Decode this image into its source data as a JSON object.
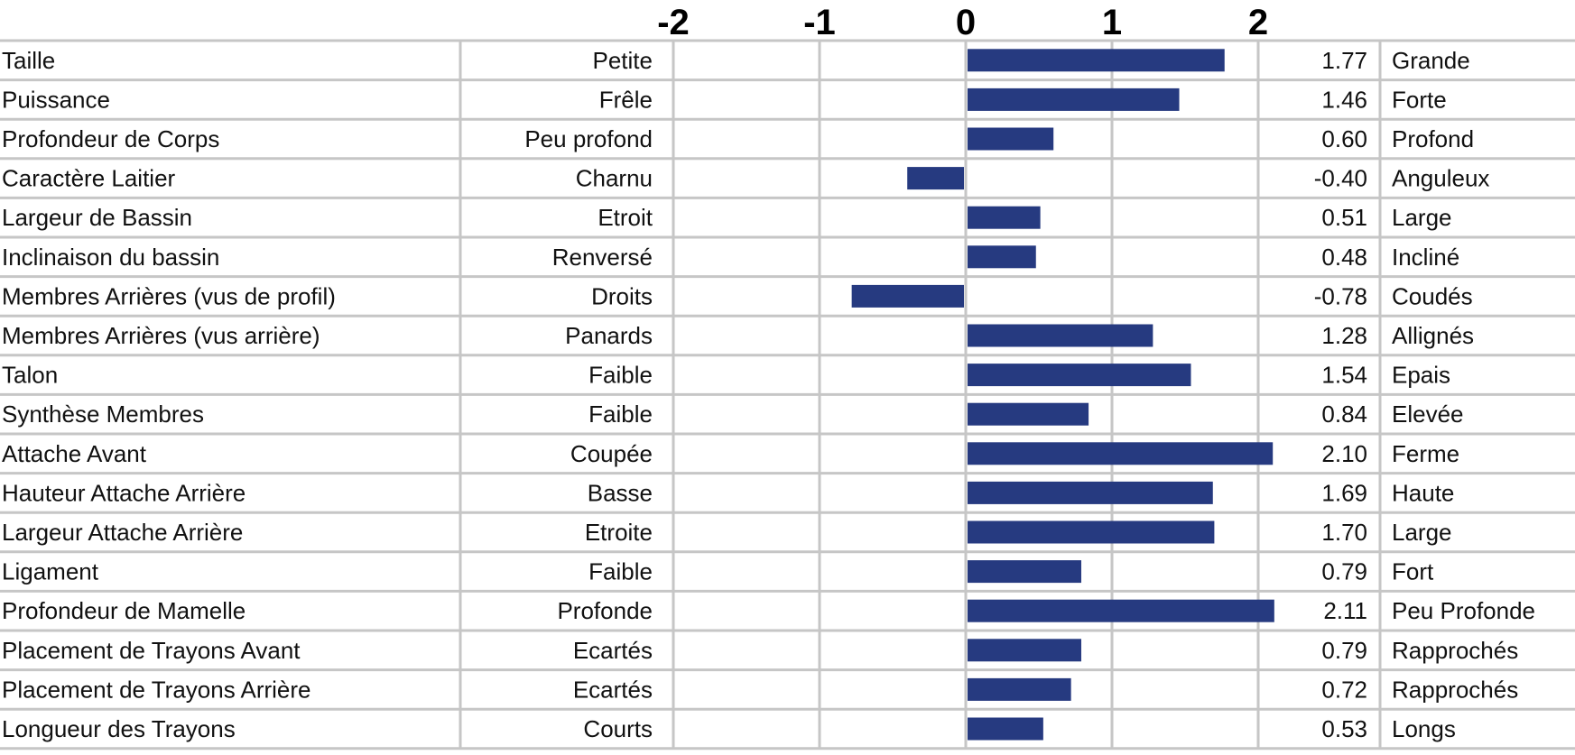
{
  "chart_data": {
    "type": "bar",
    "orientation": "horizontal",
    "xlim": [
      -2,
      2
    ],
    "x_ticks": [
      "-2",
      "-1",
      "0",
      "1",
      "2"
    ],
    "x_tick_values": [
      -2,
      -1,
      0,
      1,
      2
    ],
    "bar_color": "#263a80",
    "grid_color": "#c6c6c6",
    "rows": [
      {
        "trait": "Taille",
        "low": "Petite",
        "value": 1.77,
        "value_label": "1.77",
        "high": "Grande"
      },
      {
        "trait": "Puissance",
        "low": "Frêle",
        "value": 1.46,
        "value_label": "1.46",
        "high": "Forte"
      },
      {
        "trait": "Profondeur de Corps",
        "low": "Peu profond",
        "value": 0.6,
        "value_label": "0.60",
        "high": "Profond"
      },
      {
        "trait": "Caractère Laitier",
        "low": "Charnu",
        "value": -0.4,
        "value_label": "-0.40",
        "high": "Anguleux"
      },
      {
        "trait": "Largeur de Bassin",
        "low": "Etroit",
        "value": 0.51,
        "value_label": "0.51",
        "high": "Large"
      },
      {
        "trait": "Inclinaison du bassin",
        "low": "Renversé",
        "value": 0.48,
        "value_label": "0.48",
        "high": "Incliné"
      },
      {
        "trait": "Membres Arrières (vus de profil)",
        "low": "Droits",
        "value": -0.78,
        "value_label": "-0.78",
        "high": "Coudés"
      },
      {
        "trait": "Membres Arrières (vus arrière)",
        "low": "Panards",
        "value": 1.28,
        "value_label": "1.28",
        "high": "Allignés"
      },
      {
        "trait": "Talon",
        "low": "Faible",
        "value": 1.54,
        "value_label": "1.54",
        "high": "Epais"
      },
      {
        "trait": "Synthèse Membres",
        "low": "Faible",
        "value": 0.84,
        "value_label": "0.84",
        "high": "Elevée"
      },
      {
        "trait": "Attache Avant",
        "low": "Coupée",
        "value": 2.1,
        "value_label": "2.10",
        "high": "Ferme"
      },
      {
        "trait": "Hauteur Attache Arrière",
        "low": "Basse",
        "value": 1.69,
        "value_label": "1.69",
        "high": "Haute"
      },
      {
        "trait": "Largeur Attache Arrière",
        "low": "Etroite",
        "value": 1.7,
        "value_label": "1.70",
        "high": "Large"
      },
      {
        "trait": "Ligament",
        "low": "Faible",
        "value": 0.79,
        "value_label": "0.79",
        "high": "Fort"
      },
      {
        "trait": "Profondeur de Mamelle",
        "low": "Profonde",
        "value": 2.11,
        "value_label": "2.11",
        "high": "Peu Profonde"
      },
      {
        "trait": "Placement de Trayons Avant",
        "low": "Ecartés",
        "value": 0.79,
        "value_label": "0.79",
        "high": "Rapprochés"
      },
      {
        "trait": "Placement de Trayons Arrière",
        "low": "Ecartés",
        "value": 0.72,
        "value_label": "0.72",
        "high": "Rapprochés"
      },
      {
        "trait": "Longueur des Trayons",
        "low": "Courts",
        "value": 0.53,
        "value_label": "0.53",
        "high": "Longs"
      }
    ]
  }
}
